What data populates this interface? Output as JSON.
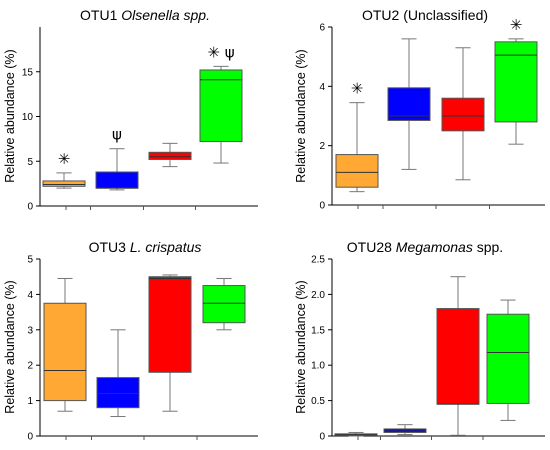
{
  "chart_data": [
    {
      "type": "box",
      "title": "OTU1 ",
      "title_italic": "Olsenella spp.",
      "title_rest": "",
      "ylabel": "Relative abundance (%)",
      "ylim": [
        0,
        20
      ],
      "yticks": [
        0,
        5,
        10,
        15
      ],
      "tick_labels": [
        "0",
        "5",
        "10",
        "15"
      ],
      "series": [
        {
          "color": "#FFA833",
          "min": 2.0,
          "q1": 2.2,
          "median": 2.4,
          "q3": 2.8,
          "max": 3.7
        },
        {
          "color": "#0000FF",
          "min": 1.8,
          "q1": 2.0,
          "median": 2.0,
          "q3": 3.8,
          "max": 6.4
        },
        {
          "color": "#FF0000",
          "min": 4.4,
          "q1": 5.2,
          "median": 5.5,
          "q3": 6.0,
          "max": 7.0
        },
        {
          "color": "#00FF00",
          "min": 4.8,
          "q1": 7.2,
          "median": 14.1,
          "q3": 15.2,
          "max": 15.6
        }
      ],
      "annotations": [
        {
          "box": 0,
          "text": "✳"
        },
        {
          "box": 1,
          "text": "ψ"
        },
        {
          "box": 3,
          "text": "✳ ψ"
        }
      ]
    },
    {
      "type": "box",
      "title": "OTU2 (Unclassified)",
      "title_italic": "",
      "title_rest": "",
      "ylabel": "Relative abundance (%)",
      "ylim": [
        0,
        6
      ],
      "yticks": [
        0,
        2,
        4,
        6
      ],
      "tick_labels": [
        "0",
        "2",
        "4",
        "6"
      ],
      "series": [
        {
          "color": "#FFA833",
          "min": 0.45,
          "q1": 0.6,
          "median": 1.1,
          "q3": 1.7,
          "max": 3.45
        },
        {
          "color": "#0000FF",
          "min": 1.2,
          "q1": 2.85,
          "median": 3.0,
          "q3": 3.95,
          "max": 5.6
        },
        {
          "color": "#FF0000",
          "min": 0.85,
          "q1": 2.5,
          "median": 3.0,
          "q3": 3.6,
          "max": 5.3
        },
        {
          "color": "#00FF00",
          "min": 2.05,
          "q1": 2.8,
          "median": 5.05,
          "q3": 5.5,
          "max": 5.6
        }
      ],
      "annotations": [
        {
          "box": 0,
          "text": "✳"
        },
        {
          "box": 3,
          "text": "✳"
        }
      ]
    },
    {
      "type": "box",
      "title": "OTU3  ",
      "title_italic": "L. crispatus",
      "title_rest": "",
      "ylabel": "Relative abundance (%)",
      "ylim": [
        0,
        5
      ],
      "yticks": [
        0,
        1,
        2,
        3,
        4,
        5
      ],
      "tick_labels": [
        "0",
        "1",
        "2",
        "3",
        "4",
        "5"
      ],
      "series": [
        {
          "color": "#FFA833",
          "min": 0.7,
          "q1": 1.0,
          "median": 1.85,
          "q3": 3.75,
          "max": 4.45
        },
        {
          "color": "#0000FF",
          "min": 0.55,
          "q1": 0.8,
          "median": 1.2,
          "q3": 1.65,
          "max": 3.0
        },
        {
          "color": "#FF0000",
          "min": 0.7,
          "q1": 1.8,
          "median": 4.45,
          "q3": 4.5,
          "max": 4.55
        },
        {
          "color": "#00FF00",
          "min": 3.0,
          "q1": 3.2,
          "median": 3.75,
          "q3": 4.25,
          "max": 4.45
        }
      ],
      "annotations": []
    },
    {
      "type": "box",
      "title": "OTU28  ",
      "title_italic": "Megamonas",
      "title_rest": " spp.",
      "ylabel": "Relative abundance (%)",
      "ylim": [
        0,
        2.5
      ],
      "yticks": [
        0,
        0.5,
        1.0,
        1.5,
        2.0,
        2.5
      ],
      "tick_labels": [
        "0",
        "0.5",
        "1.0",
        "1.5",
        "2.0",
        "2.5"
      ],
      "series": [
        {
          "color": "#FFA833",
          "min": 0.0,
          "q1": 0.01,
          "median": 0.02,
          "q3": 0.03,
          "max": 0.05
        },
        {
          "color": "#0000FF",
          "min": 0.02,
          "q1": 0.05,
          "median": 0.07,
          "q3": 0.1,
          "max": 0.16
        },
        {
          "color": "#FF0000",
          "min": 0.01,
          "q1": 0.45,
          "median": 0.45,
          "q3": 1.8,
          "max": 2.25
        },
        {
          "color": "#00FF00",
          "min": 0.22,
          "q1": 0.46,
          "median": 1.18,
          "q3": 1.72,
          "max": 1.92
        }
      ],
      "annotations": []
    }
  ]
}
